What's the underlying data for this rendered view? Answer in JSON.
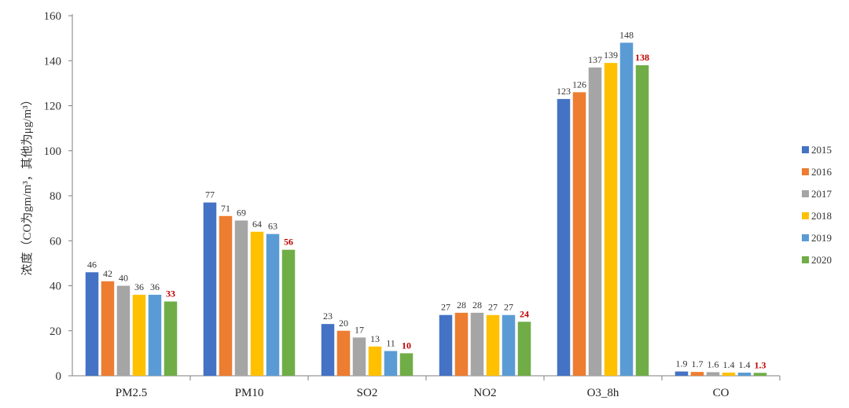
{
  "chart_data": {
    "type": "bar",
    "categories": [
      "PM2.5",
      "PM10",
      "SO2",
      "NO2",
      "O3_8h",
      "CO"
    ],
    "series": [
      {
        "name": "2015",
        "color": "#4472c4",
        "values": [
          46,
          77,
          23,
          27,
          123,
          1.9
        ]
      },
      {
        "name": "2016",
        "color": "#ed7d31",
        "values": [
          42,
          71,
          20,
          28,
          126,
          1.7
        ]
      },
      {
        "name": "2017",
        "color": "#a5a5a5",
        "values": [
          40,
          69,
          17,
          28,
          137,
          1.6
        ]
      },
      {
        "name": "2018",
        "color": "#ffc000",
        "values": [
          36,
          64,
          13,
          27,
          139,
          1.4
        ]
      },
      {
        "name": "2019",
        "color": "#5b9bd5",
        "values": [
          36,
          63,
          11,
          27,
          148,
          1.4
        ]
      },
      {
        "name": "2020",
        "color": "#70ad47",
        "values": [
          33,
          56,
          10,
          24,
          138,
          1.3
        ],
        "label_color": "#c00000"
      }
    ],
    "ylabel": "浓度（CO为gm/m³，其他为μg/m³）",
    "ylim": [
      0,
      160
    ],
    "yticks": [
      0,
      20,
      40,
      60,
      80,
      100,
      120,
      140,
      160
    ],
    "ytick_labels": [
      "0",
      "20",
      "40",
      "60",
      "80",
      "100",
      "120",
      "140",
      "160"
    ],
    "grid": false,
    "legend_position": "right"
  }
}
